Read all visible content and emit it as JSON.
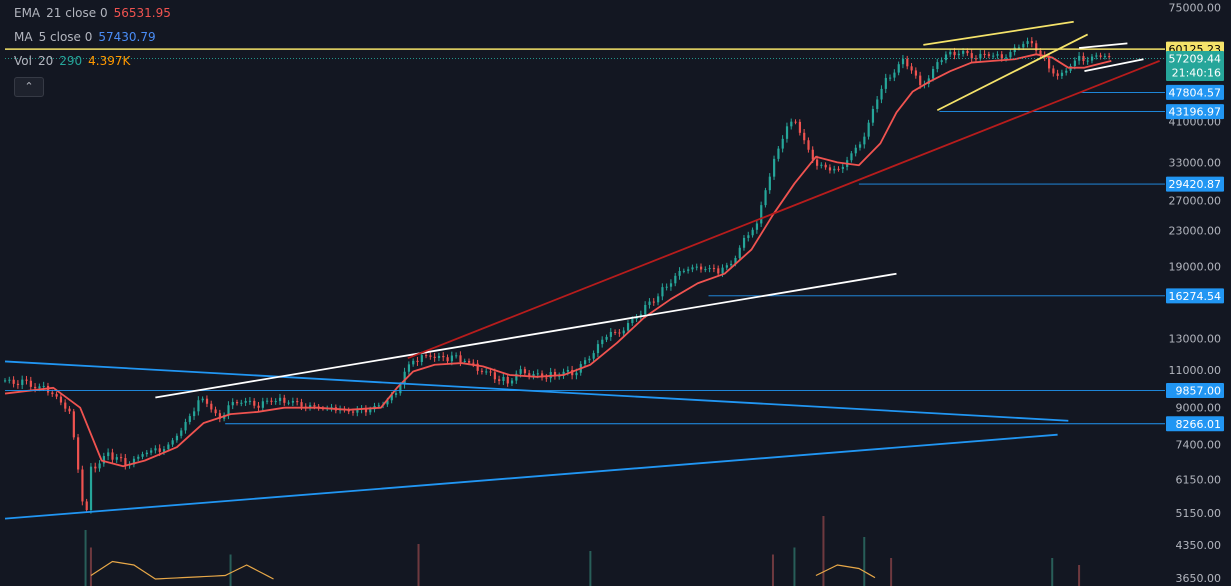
{
  "legend": {
    "ema": {
      "name": "EMA",
      "params": "21 close 0",
      "value": "56531.95",
      "color": "#f05350"
    },
    "ma": {
      "name": "MA",
      "params": "5 close 0",
      "value": "57430.79",
      "color": "#2962ff"
    },
    "vol": {
      "name": "Vol",
      "params": "20",
      "value1": "290",
      "value2": "4.397K",
      "color1": "#26a69a",
      "color2": "#ff9800"
    },
    "collapse_icon": "chevron-up-icon"
  },
  "chart_data": {
    "type": "line",
    "scale": "log",
    "ylim": [
      3500,
      78000
    ],
    "y_ticks": [
      75000,
      41000,
      33000,
      27000,
      23000,
      19000,
      13000,
      11000,
      9000,
      7400,
      6150,
      5150,
      4350,
      3650
    ],
    "y_tick_labels": [
      "75000.00",
      "41000.00",
      "33000.00",
      "27000.00",
      "23000.00",
      "19000.00",
      "13000.00",
      "11000.00",
      "9000.00",
      "7400.00",
      "6150.00",
      "5150.00",
      "4350.00",
      "3650.00"
    ],
    "price_series": {
      "bar_index": [
        0,
        25,
        45,
        60,
        70,
        75,
        80,
        95,
        115,
        130,
        150,
        165,
        175,
        185,
        200,
        210,
        220,
        235,
        250,
        270,
        290,
        310,
        330,
        350,
        365,
        378,
        390,
        400,
        410,
        420,
        432,
        445,
        460,
        470,
        480,
        495,
        510,
        530,
        545,
        560,
        575,
        590,
        605,
        620,
        635,
        650,
        665,
        680,
        690,
        700,
        712,
        725,
        735,
        745,
        755,
        765,
        775,
        785,
        795,
        805,
        815,
        825,
        835,
        845,
        852,
        860,
        870,
        880,
        890,
        900,
        910,
        920,
        930,
        940,
        950,
        960,
        970,
        980,
        990,
        1000,
        1010,
        1020,
        1030
      ],
      "close": [
        10400,
        10200,
        9700,
        8800,
        6000,
        4900,
        6500,
        7000,
        6700,
        7100,
        7300,
        8000,
        8900,
        9500,
        8400,
        9100,
        9300,
        9100,
        9400,
        9200,
        9000,
        8900,
        8800,
        9100,
        9800,
        11500,
        11800,
        11900,
        11500,
        11800,
        11400,
        10900,
        10500,
        10300,
        10900,
        10600,
        10700,
        10900,
        11800,
        13100,
        13600,
        14800,
        16000,
        17700,
        18800,
        18900,
        18400,
        19900,
        22500,
        23500,
        31000,
        38500,
        41500,
        36000,
        33000,
        32000,
        31500,
        34000,
        36000,
        41000,
        49000,
        52500,
        56500,
        54000,
        49000,
        52000,
        56500,
        59000,
        59500,
        58000,
        57500,
        58500,
        57500,
        60000,
        62500,
        60000,
        56000,
        51500,
        54500,
        57000,
        57500,
        58000,
        57200
      ]
    },
    "ema_series": {
      "bar_index": [
        0,
        45,
        70,
        90,
        110,
        130,
        160,
        185,
        210,
        235,
        260,
        290,
        320,
        350,
        365,
        380,
        400,
        425,
        445,
        470,
        495,
        520,
        545,
        570,
        595,
        620,
        645,
        670,
        695,
        715,
        735,
        755,
        775,
        795,
        815,
        830,
        845,
        860,
        880,
        900,
        920,
        940,
        960,
        975,
        990,
        1005,
        1030
      ],
      "values": [
        9700,
        10000,
        9000,
        6800,
        6600,
        6800,
        7300,
        8300,
        8700,
        8800,
        9000,
        9000,
        8900,
        9000,
        10000,
        10900,
        11300,
        11400,
        11200,
        10700,
        10600,
        10700,
        11300,
        12700,
        14500,
        16000,
        17400,
        18300,
        20800,
        25000,
        29500,
        34000,
        33000,
        32500,
        36500,
        43000,
        48000,
        50500,
        53500,
        56000,
        56500,
        57000,
        58500,
        57500,
        54500,
        54500,
        56500
      ]
    },
    "annotations": [
      {
        "label": "60125.23",
        "price": 60125.23,
        "color": "#f5e36a",
        "text_color": "#000000",
        "style": "solid"
      },
      {
        "label": "57209.44",
        "price": 57209.44,
        "color": "#26a69a",
        "text_color": "#ffffff",
        "style": "dotted",
        "sublabel": "21:40:16"
      },
      {
        "label": "47804.57",
        "price": 47804.57,
        "color": "#2196f3",
        "text_color": "#ffffff",
        "from_bar": 1000
      },
      {
        "label": "43196.97",
        "price": 43196.97,
        "color": "#2196f3",
        "text_color": "#ffffff",
        "from_bar": 870
      },
      {
        "label": "29420.87",
        "price": 29420.87,
        "color": "#2196f3",
        "text_color": "#ffffff",
        "from_bar": 795
      },
      {
        "label": "16274.54",
        "price": 16274.54,
        "color": "#2196f3",
        "text_color": "#ffffff",
        "from_bar": 655
      },
      {
        "label": "9857.00",
        "price": 9857.0,
        "color": "#2196f3",
        "text_color": "#ffffff",
        "from_bar": 0
      },
      {
        "label": "8266.01",
        "price": 8266.01,
        "color": "#2196f3",
        "text_color": "#ffffff",
        "from_bar": 205
      }
    ],
    "trendlines": [
      {
        "color": "#2196f3",
        "from": [
          0,
          11500
        ],
        "to": [
          990,
          8400
        ]
      },
      {
        "color": "#2196f3",
        "from": [
          0,
          5000
        ],
        "to": [
          980,
          7800
        ]
      },
      {
        "color": "#ffffff",
        "from": [
          140,
          9500
        ],
        "to": [
          830,
          18300
        ]
      },
      {
        "color": "#b71c1c",
        "from": [
          375,
          11700
        ],
        "to": [
          1075,
          56500
        ]
      },
      {
        "color": "#f5e36a",
        "from": [
          855,
          61500
        ],
        "to": [
          995,
          69500
        ]
      },
      {
        "color": "#f5e36a",
        "from": [
          868,
          43500
        ],
        "to": [
          1008,
          65000
        ]
      },
      {
        "color": "#ffffff",
        "from": [
          1000,
          60500
        ],
        "to": [
          1045,
          62000
        ]
      },
      {
        "color": "#ffffff",
        "from": [
          1005,
          53500
        ],
        "to": [
          1060,
          57000
        ]
      }
    ],
    "volume_bars": [
      {
        "bar_index": 75,
        "height": 0.8
      },
      {
        "bar_index": 80,
        "height": 0.55
      },
      {
        "bar_index": 210,
        "height": 0.45
      },
      {
        "bar_index": 385,
        "height": 0.6
      },
      {
        "bar_index": 545,
        "height": 0.5
      },
      {
        "bar_index": 715,
        "height": 0.45
      },
      {
        "bar_index": 735,
        "height": 0.55
      },
      {
        "bar_index": 762,
        "height": 1.0
      },
      {
        "bar_index": 800,
        "height": 0.7
      },
      {
        "bar_index": 825,
        "height": 0.4
      },
      {
        "bar_index": 975,
        "height": 0.4
      },
      {
        "bar_index": 1000,
        "height": 0.3
      }
    ],
    "volume_ma": {
      "bar_index": [
        80,
        100,
        120,
        140,
        205,
        225,
        250,
        755,
        775,
        795,
        810
      ],
      "values": [
        0.15,
        0.35,
        0.3,
        0.1,
        0.15,
        0.3,
        0.1,
        0.15,
        0.3,
        0.25,
        0.12
      ]
    },
    "colors": {
      "background": "#131722",
      "up": "#26a69a",
      "down": "#ef5350",
      "ema": "#f05350",
      "axis_text": "#b2b5be"
    },
    "grid": false
  }
}
